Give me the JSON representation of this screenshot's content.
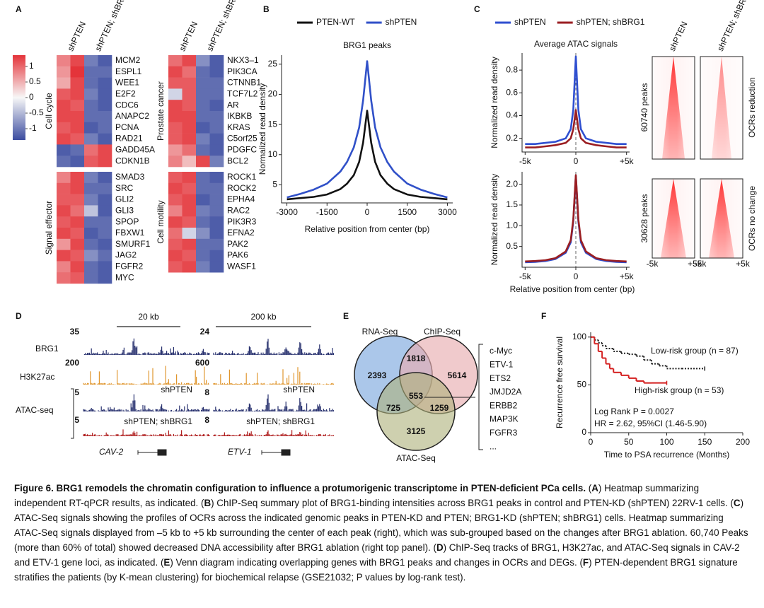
{
  "panel_labels": [
    "A",
    "B",
    "C",
    "D",
    "E",
    "F"
  ],
  "heatmap": {
    "column_groups": [
      "shPTEN",
      "shPTEN; shBRG1"
    ],
    "colorbar_ticks": [
      1,
      0.5,
      0,
      -0.5,
      -1
    ],
    "groups": [
      {
        "name": "Cell cycle",
        "genes": [
          "MCM2",
          "ESPL1",
          "WEE1",
          "E2F2",
          "CDC6",
          "ANAPC2",
          "PCNA",
          "RAD21",
          "GADD45A",
          "CDKN1B"
        ],
        "values": [
          [
            0.6,
            0.9,
            -0.7,
            -0.9
          ],
          [
            0.5,
            1.0,
            -0.8,
            -0.8
          ],
          [
            0.4,
            0.9,
            -0.8,
            -0.9
          ],
          [
            0.8,
            0.9,
            -0.7,
            -0.9
          ],
          [
            0.9,
            0.8,
            -0.8,
            -0.9
          ],
          [
            0.9,
            0.9,
            -0.8,
            -0.8
          ],
          [
            0.8,
            0.9,
            -0.9,
            -0.8
          ],
          [
            0.9,
            0.8,
            -0.7,
            -0.9
          ],
          [
            -0.9,
            -0.8,
            0.7,
            0.9
          ],
          [
            -0.8,
            -0.9,
            0.8,
            0.9
          ]
        ]
      },
      {
        "name": "Prostate cancer",
        "genes": [
          "NKX3–1",
          "PIK3CA",
          "CTNNB1",
          "TCF7L2",
          "AR",
          "IKBKB",
          "KRAS",
          "C5orf25",
          "PDGFC",
          "BCL2"
        ],
        "values": [
          [
            0.7,
            0.9,
            -0.6,
            -0.9
          ],
          [
            0.9,
            0.7,
            -0.8,
            -0.9
          ],
          [
            0.8,
            0.8,
            -0.8,
            -0.8
          ],
          [
            -0.2,
            0.8,
            -0.8,
            -0.8
          ],
          [
            0.9,
            0.8,
            -0.8,
            -0.9
          ],
          [
            0.9,
            0.9,
            -0.8,
            -0.8
          ],
          [
            0.8,
            0.9,
            -0.9,
            -0.8
          ],
          [
            0.8,
            0.9,
            -0.7,
            -0.9
          ],
          [
            0.5,
            0.7,
            -0.8,
            -0.9
          ],
          [
            0.6,
            0.3,
            0.9,
            -0.7
          ]
        ]
      },
      {
        "name": "Signal effector",
        "genes": [
          "SMAD3",
          "SRC",
          "GLI2",
          "GLI3",
          "SPOP",
          "FBXW1",
          "SMURF1",
          "JAG2",
          "FGFR2",
          "MYC"
        ],
        "values": [
          [
            0.6,
            0.9,
            -0.7,
            -0.9
          ],
          [
            0.8,
            0.9,
            -0.8,
            -0.8
          ],
          [
            0.8,
            0.8,
            -0.7,
            -0.9
          ],
          [
            0.9,
            0.7,
            -0.3,
            -0.9
          ],
          [
            0.8,
            0.9,
            -0.8,
            -0.8
          ],
          [
            0.9,
            0.8,
            -0.9,
            -0.8
          ],
          [
            0.5,
            0.9,
            -0.8,
            -0.9
          ],
          [
            0.9,
            0.8,
            -0.6,
            -0.8
          ],
          [
            0.6,
            0.9,
            -0.8,
            -0.9
          ],
          [
            0.7,
            0.8,
            -0.8,
            -0.9
          ]
        ]
      },
      {
        "name": "Cell motility",
        "genes": [
          "ROCK1",
          "ROCK2",
          "EPHA4",
          "RAC2",
          "PIK3R3",
          "EFNA2",
          "PAK2",
          "PAK6",
          "WASF1"
        ],
        "values": [
          [
            0.8,
            0.9,
            -0.8,
            -0.9
          ],
          [
            0.9,
            0.8,
            -0.8,
            -0.8
          ],
          [
            0.8,
            0.9,
            -0.9,
            -0.8
          ],
          [
            0.6,
            0.9,
            -0.7,
            -0.8
          ],
          [
            0.9,
            0.8,
            -0.8,
            -0.9
          ],
          [
            0.7,
            -0.2,
            -0.6,
            -0.9
          ],
          [
            0.8,
            0.9,
            -0.8,
            -0.8
          ],
          [
            0.9,
            0.8,
            -0.8,
            -0.9
          ],
          [
            0.8,
            0.9,
            -0.7,
            -0.9
          ]
        ]
      }
    ]
  },
  "chart_data": [
    {
      "type": "line",
      "title": "BRG1 peaks",
      "legend": "top",
      "x_label": "Relative position from center (bp)",
      "y_label": "Normalized read density",
      "x": [
        -3000,
        -2500,
        -2000,
        -1500,
        -1000,
        -750,
        -500,
        -300,
        -150,
        0,
        150,
        300,
        500,
        750,
        1000,
        1500,
        2000,
        2500,
        3000
      ],
      "series": [
        {
          "name": "PTEN-WT",
          "color": "#111111",
          "values": [
            2.6,
            2.8,
            3.0,
            3.4,
            4.3,
            5.2,
            6.6,
            8.8,
            12.0,
            17.3,
            12.0,
            8.8,
            6.6,
            5.2,
            4.3,
            3.4,
            3.0,
            2.8,
            2.6
          ]
        },
        {
          "name": "shPTEN",
          "color": "#3050c8",
          "values": [
            2.9,
            3.5,
            4.2,
            5.2,
            7.2,
            8.8,
            11.2,
            14.5,
            19.0,
            25.5,
            19.0,
            14.5,
            11.2,
            8.8,
            7.2,
            5.2,
            4.2,
            3.5,
            2.9
          ]
        }
      ],
      "xlim": [
        -3200,
        3200
      ],
      "xticks": [
        -3000,
        -1500,
        0,
        1500,
        3000
      ],
      "ylim": [
        2,
        26.5
      ],
      "yticks": [
        5,
        10,
        15,
        20,
        25
      ]
    },
    {
      "type": "line",
      "title": "Average ATAC signals",
      "legend": "top",
      "y_label": "Normalized read density",
      "x": [
        -5000,
        -4000,
        -3000,
        -2000,
        -1000,
        -500,
        -250,
        0,
        250,
        500,
        1000,
        2000,
        3000,
        4000,
        5000
      ],
      "series": [
        {
          "name": "shPTEN",
          "color": "#2f4fd0",
          "values": [
            0.15,
            0.15,
            0.16,
            0.17,
            0.2,
            0.28,
            0.45,
            0.92,
            0.45,
            0.28,
            0.2,
            0.17,
            0.16,
            0.15,
            0.15
          ]
        },
        {
          "name": "shPTEN; shBRG1",
          "color": "#9a1e22",
          "values": [
            0.12,
            0.12,
            0.13,
            0.14,
            0.16,
            0.2,
            0.28,
            0.45,
            0.28,
            0.2,
            0.16,
            0.14,
            0.13,
            0.12,
            0.12
          ]
        }
      ],
      "xlim": [
        -5300,
        5300
      ],
      "xticks": [
        {
          "value": -5000,
          "label": "-5k"
        },
        0,
        {
          "value": 5000,
          "label": "+5k"
        }
      ],
      "ylim": [
        0.08,
        0.95
      ],
      "yticks": [
        0.2,
        0.4,
        0.6,
        0.8
      ]
    },
    {
      "type": "line",
      "x_label": "Relative position from center (bp)",
      "y_label": "Normalized read density",
      "x": [
        -5000,
        -4000,
        -3000,
        -2000,
        -1000,
        -500,
        -250,
        0,
        250,
        500,
        1000,
        2000,
        3000,
        4000,
        5000
      ],
      "series": [
        {
          "color": "#2f4fd0",
          "values": [
            0.12,
            0.13,
            0.15,
            0.2,
            0.35,
            0.6,
            1.1,
            2.2,
            1.1,
            0.6,
            0.35,
            0.2,
            0.15,
            0.13,
            0.12
          ]
        },
        {
          "color": "#9a1e22",
          "values": [
            0.14,
            0.15,
            0.17,
            0.22,
            0.38,
            0.65,
            1.15,
            2.22,
            1.15,
            0.65,
            0.38,
            0.22,
            0.17,
            0.15,
            0.14
          ]
        }
      ],
      "xlim": [
        -5300,
        5300
      ],
      "xticks": [
        {
          "value": -5000,
          "label": "-5k"
        },
        0,
        {
          "value": 5000,
          "label": "+5k"
        }
      ],
      "ylim": [
        0,
        2.3
      ],
      "yticks": [
        0.5,
        {
          "value": 1,
          "label": "1.0"
        },
        1.5,
        {
          "value": 2,
          "label": "2.0"
        }
      ]
    },
    {
      "type": "step",
      "legend": "inline",
      "x_label": "Time to PSA recurrence (Months)",
      "y_label": "Recurrence free survival",
      "annotations": [
        "Log Rank P = 0.0027",
        "HR = 2.62, 95%CI (1.46-5.90)"
      ],
      "series": [
        {
          "name": "Low-risk group (n = 87)",
          "color": "#222222",
          "linestyle": "dotted",
          "x": [
            0,
            5,
            10,
            15,
            20,
            30,
            40,
            50,
            60,
            70,
            80,
            90,
            100,
            120,
            150
          ],
          "values": [
            100,
            97,
            94,
            91,
            88,
            85,
            83,
            82,
            80,
            76,
            72,
            70,
            67,
            67,
            67
          ]
        },
        {
          "name": "High-risk group (n = 53)",
          "color": "#d42020",
          "linestyle": "solid",
          "x": [
            0,
            5,
            10,
            15,
            20,
            25,
            30,
            40,
            50,
            60,
            70,
            80,
            100
          ],
          "values": [
            100,
            93,
            85,
            78,
            72,
            67,
            63,
            60,
            57,
            54,
            52,
            52,
            52
          ]
        }
      ],
      "xlim": [
        0,
        200
      ],
      "xticks": [
        0,
        50,
        100,
        150,
        200
      ],
      "ylim": [
        0,
        105
      ],
      "yticks": [
        0,
        50,
        100
      ]
    }
  ],
  "atac_heatmap": {
    "columns": [
      "shPTEN",
      "shPTEN; shBRG1"
    ],
    "rows": [
      {
        "peaks": "60740 peaks",
        "group": "OCRs reduction"
      },
      {
        "peaks": "30628 peaks",
        "group": "OCRs no change"
      }
    ],
    "x_labels": [
      "-5k",
      "+5k"
    ]
  },
  "tracks": {
    "scales": [
      "20 kb",
      "200 kb"
    ],
    "track_names": [
      "BRG1",
      "H3K27ac",
      "ATAC-seq"
    ],
    "conditions": [
      "shPTEN",
      "shPTEN; shBRG1"
    ],
    "loci": [
      {
        "gene": "CAV-2",
        "ranges": [
          "35",
          "200",
          "5",
          "5"
        ]
      },
      {
        "gene": "ETV-1",
        "ranges": [
          "24",
          "600",
          "8",
          "8"
        ]
      }
    ]
  },
  "venn": {
    "sets": [
      "RNA-Seq",
      "ChIP-Seq",
      "ATAC-Seq"
    ],
    "regions": {
      "rna_only": "2393",
      "rna_chip": "1818",
      "chip_only": "5614",
      "all": "553",
      "rna_atac": "725",
      "chip_atac": "1259",
      "atac_only": "3125"
    },
    "genes": [
      "c-Myc",
      "ETV-1",
      "ETS2",
      "JMJD2A",
      "ERBB2",
      "MAP3K",
      "FGFR3",
      "..."
    ]
  },
  "caption": {
    "title": "Figure 6. BRG1 remodels the chromatin configuration to influence a protumorigenic transcriptome in PTEN-deficient PCa cells.",
    "body": [
      " (",
      "A",
      ") Heatmap summarizing independent RT-qPCR results, as indicated. (",
      "B",
      ") ChIP-Seq summary plot of BRG1-binding intensities across BRG1 peaks in control and PTEN-KD (shPTEN) 22RV-1 cells. (",
      "C",
      ") ATAC-Seq signals showing the profiles of OCRs across the indicated genomic peaks in PTEN-KD and PTEN; BRG1-KD (shPTEN; shBRG1) cells. Heatmap summarizing ATAC-Seq signals displayed from –5 kb to +5 kb surrounding the center of each peak (right), which was sub-grouped based on the changes after BRG1 ablation. 60,740 Peaks (more than 60% of total) showed decreased DNA accessibility after BRG1 ablation (right top panel). (",
      "D",
      ") ChIP-Seq tracks of BRG1, H3K27ac, and ATAC-Seq signals in CAV-2 and ETV-1 gene loci, as indicated. (",
      "E",
      ") Venn diagram indicating overlapping genes with BRG1 peaks and changes in OCRs and DEGs. (",
      "F",
      ") PTEN-dependent BRG1 signature stratifies the patients (by K-mean clustering) for biochemical relapse (GSE21032; P values by log-rank test)."
    ]
  }
}
